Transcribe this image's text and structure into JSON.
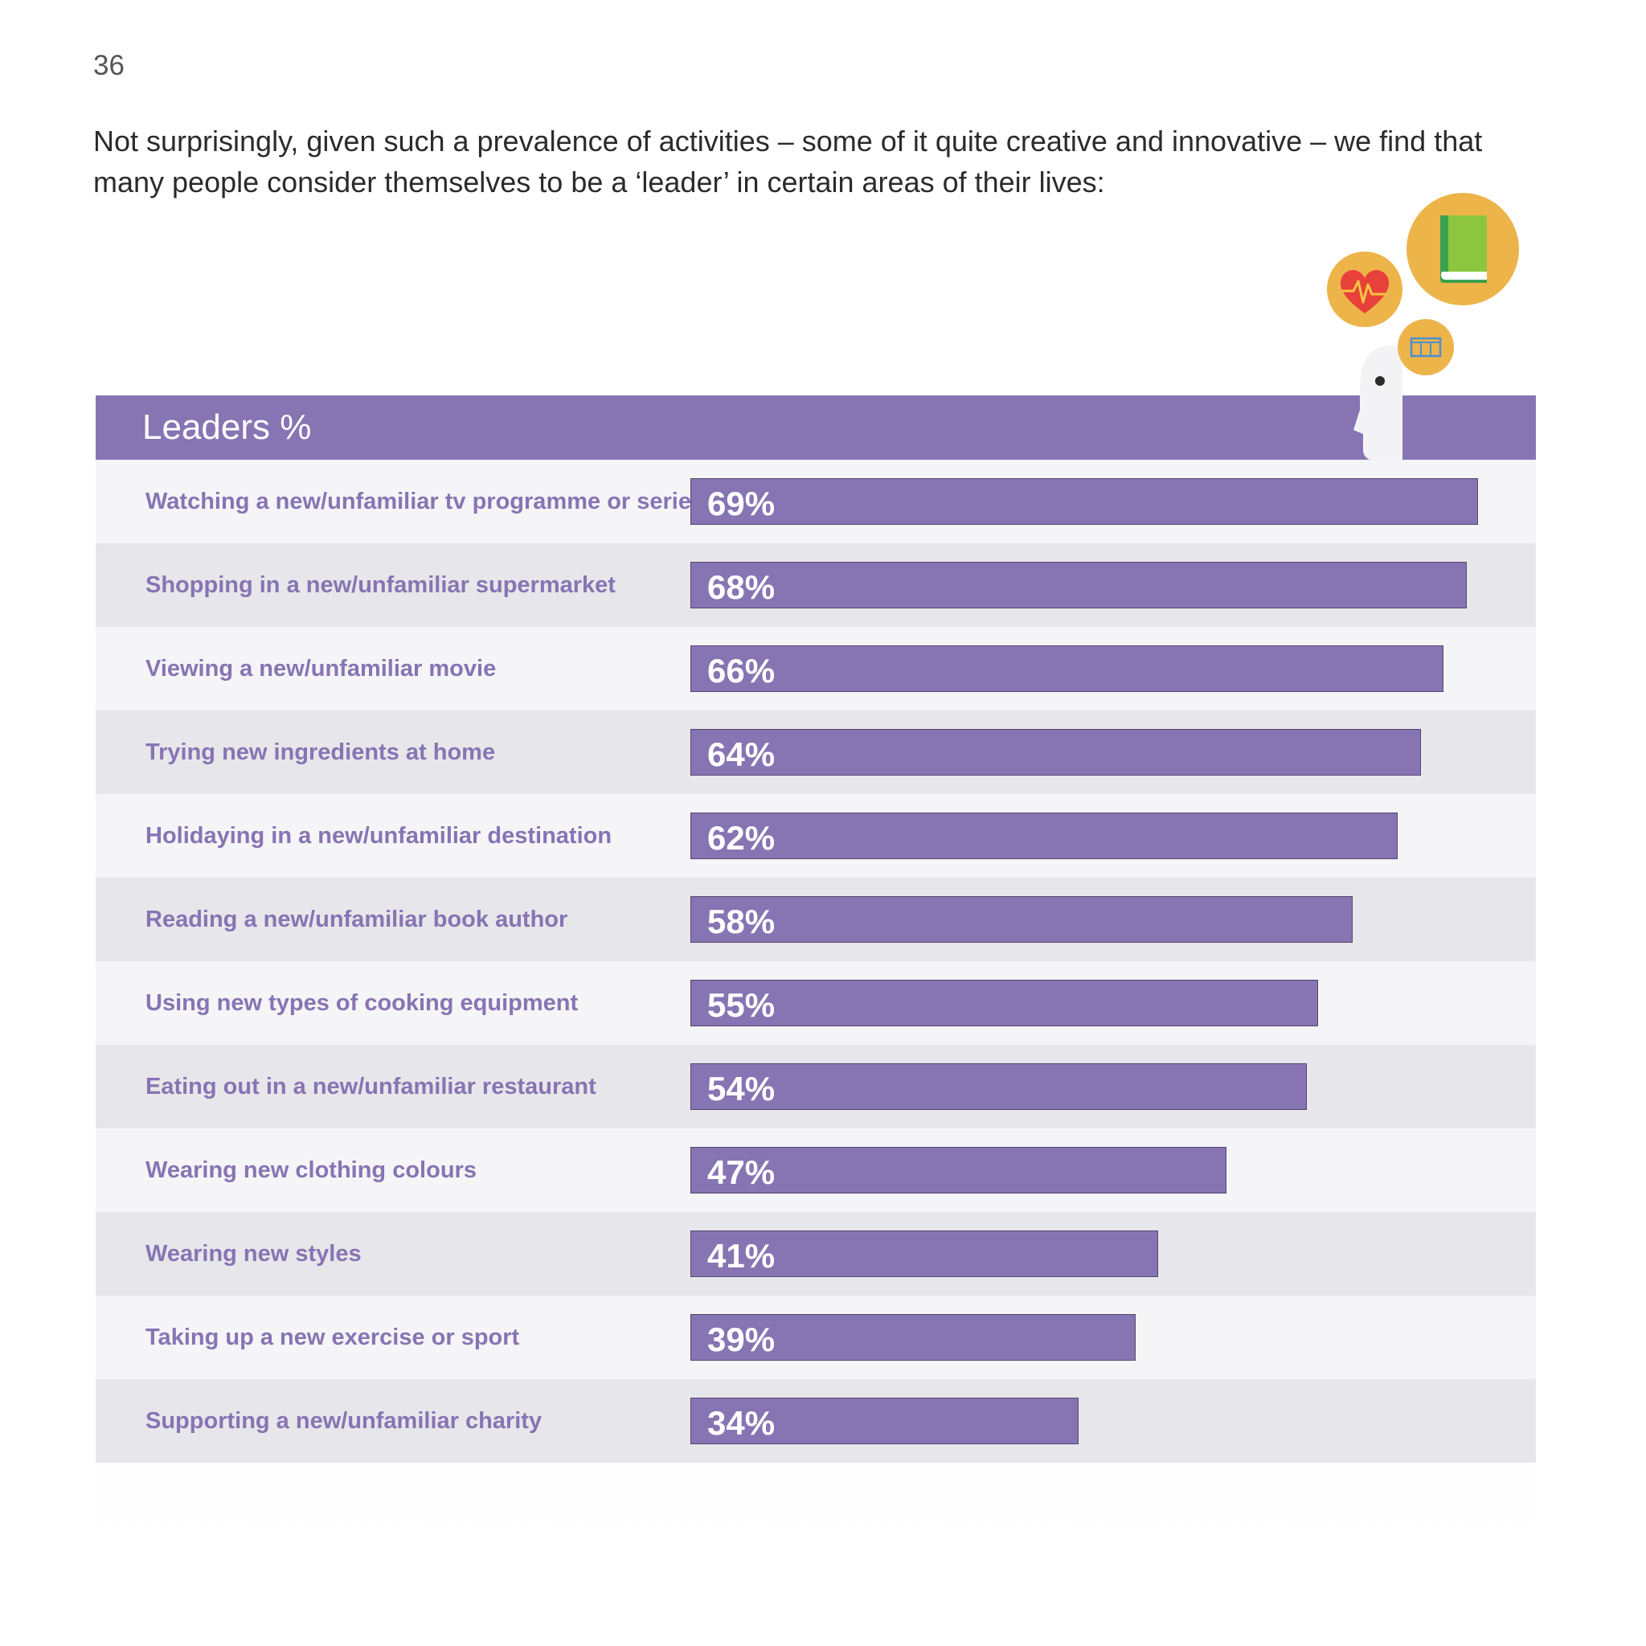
{
  "page": {
    "number": "36",
    "intro": "Not surprisingly, given such a prevalence of activities – some of it quite creative and innovative – we find that many people consider themselves to be a ‘leader’ in certain areas of their lives:"
  },
  "colors": {
    "accent": "#8774b3",
    "row_light": "#f5f4f7",
    "row_dark": "#e7e6ea",
    "icon_circle": "#edb44a"
  },
  "icons": [
    "heart-rate-icon",
    "book-icon",
    "film-icon",
    "head-silhouette-icon"
  ],
  "chart_data": {
    "type": "bar",
    "orientation": "horizontal",
    "title": "Leaders %",
    "xlim": [
      0,
      100
    ],
    "categories": [
      "Watching a new/unfamiliar tv programme or series",
      "Shopping in a new/unfamiliar supermarket",
      "Viewing a new/unfamiliar movie",
      "Trying new ingredients at home",
      "Holidaying in a new/unfamiliar destination",
      "Reading a new/unfamiliar book author",
      "Using new types of cooking equipment",
      "Eating out in a new/unfamiliar restaurant",
      "Wearing new clothing colours",
      "Wearing new styles",
      "Taking up a new exercise or sport",
      "Supporting a new/unfamiliar charity"
    ],
    "values": [
      69,
      68,
      66,
      64,
      62,
      58,
      55,
      54,
      47,
      41,
      39,
      34
    ],
    "value_labels": [
      "69%",
      "68%",
      "66%",
      "64%",
      "62%",
      "58%",
      "55%",
      "54%",
      "47%",
      "41%",
      "39%",
      "34%"
    ]
  }
}
